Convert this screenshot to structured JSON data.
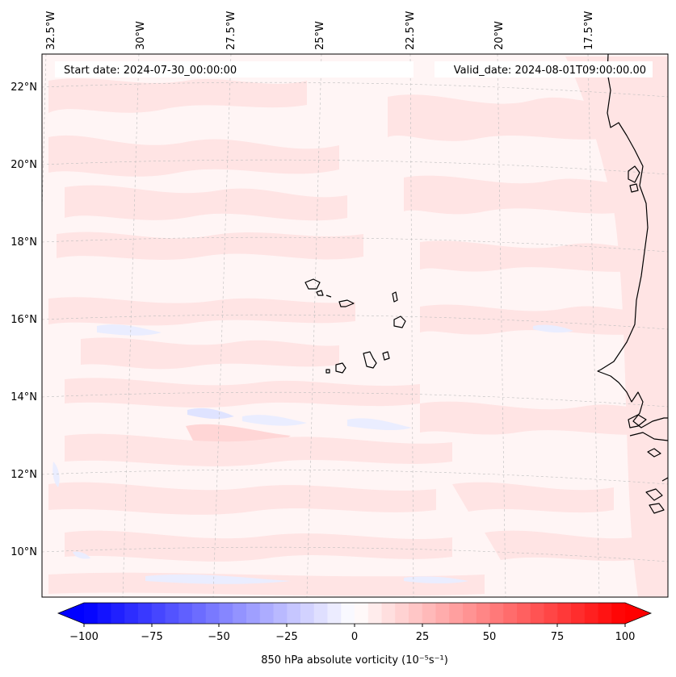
{
  "header": {
    "start_date": "Start date: 2024-07-30_00:00:00",
    "valid_date": "Valid_date: 2024-08-01T09:00:00.00"
  },
  "axes": {
    "lon_labels": [
      "32.5°W",
      "30°W",
      "27.5°W",
      "25°W",
      "22.5°W",
      "20°W",
      "17.5°W"
    ],
    "lat_labels": [
      "22°N",
      "20°N",
      "18°N",
      "16°N",
      "14°N",
      "12°N",
      "10°N"
    ]
  },
  "colorbar": {
    "label": "850 hPa absolute vorticity (10⁻⁵s⁻¹)",
    "ticks": [
      "−100",
      "−75",
      "−50",
      "−25",
      "0",
      "25",
      "50",
      "75",
      "100"
    ],
    "min": -100,
    "max": 100,
    "step": 5,
    "low_color": "#0000ff",
    "high_color": "#ff0000"
  },
  "colors": {
    "background_field": "#fff5f5",
    "positive_patch": "#ffe4e4",
    "negative_patch": "#eaedff",
    "coastline": "#000000",
    "gridline": "#bdbdbd"
  }
}
